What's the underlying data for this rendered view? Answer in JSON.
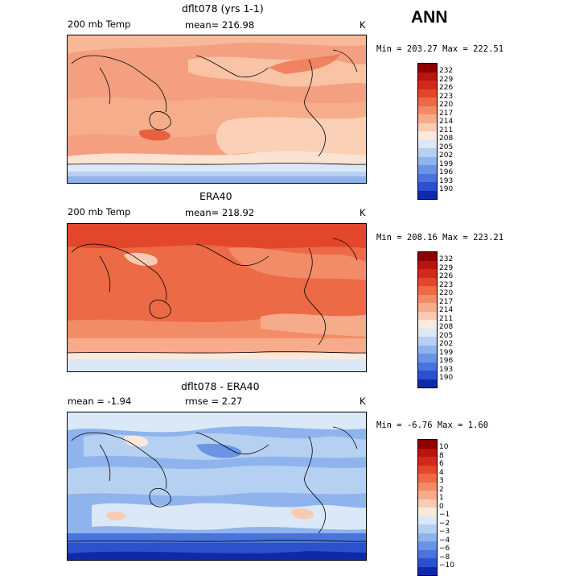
{
  "season_label": "ANN",
  "units": "K",
  "panels": [
    {
      "id": "model",
      "title": "dflt078 (yrs 1-1)",
      "left_label": "200 mb Temp",
      "center_label": "mean=  216.98",
      "right_label": "K",
      "minmax": "Min = 203.27 Max = 222.51",
      "colorbar": {
        "labels": [
          "232",
          "229",
          "226",
          "223",
          "220",
          "217",
          "214",
          "211",
          "208",
          "205",
          "202",
          "199",
          "196",
          "193",
          "190"
        ],
        "colors": [
          "#8b0000",
          "#b8150f",
          "#d12a1c",
          "#e2462b",
          "#ec6a45",
          "#f28c66",
          "#f6ab8a",
          "#f9cbb2",
          "#fbe9dc",
          "#dbe8f8",
          "#b6d0f2",
          "#8fb3ec",
          "#6a94e4",
          "#4a73dc",
          "#2c51cf",
          "#0e2aa8"
        ]
      }
    },
    {
      "id": "obs",
      "title": "ERA40",
      "left_label": "200 mb Temp",
      "center_label": "mean=  218.92",
      "right_label": "K",
      "minmax": "Min = 208.16 Max = 223.21",
      "colorbar": {
        "labels": [
          "232",
          "229",
          "226",
          "223",
          "220",
          "217",
          "214",
          "211",
          "208",
          "205",
          "202",
          "199",
          "196",
          "193",
          "190"
        ],
        "colors": [
          "#8b0000",
          "#b8150f",
          "#d12a1c",
          "#e2462b",
          "#ec6a45",
          "#f28c66",
          "#f6ab8a",
          "#f9cbb2",
          "#fbe9dc",
          "#dbe8f8",
          "#b6d0f2",
          "#8fb3ec",
          "#6a94e4",
          "#4a73dc",
          "#2c51cf",
          "#0e2aa8"
        ]
      }
    },
    {
      "id": "diff",
      "title": "dflt078 - ERA40",
      "left_label": "mean =   -1.94",
      "center_label": "rmse =    2.27",
      "right_label": "K",
      "minmax": "Min =  -6.76 Max =   1.60",
      "colorbar": {
        "labels": [
          "10",
          "8",
          "6",
          "4",
          "3",
          "2",
          "1",
          "0",
          "−1",
          "−2",
          "−3",
          "−4",
          "−6",
          "−8",
          "−10"
        ],
        "colors": [
          "#8b0000",
          "#b8150f",
          "#d12a1c",
          "#e2462b",
          "#ec6a45",
          "#f28c66",
          "#f6ab8a",
          "#f9cbb2",
          "#fbe9dc",
          "#dbe8f8",
          "#b6d0f2",
          "#8fb3ec",
          "#6a94e4",
          "#4a73dc",
          "#2c51cf",
          "#0e2aa8"
        ]
      }
    }
  ]
}
